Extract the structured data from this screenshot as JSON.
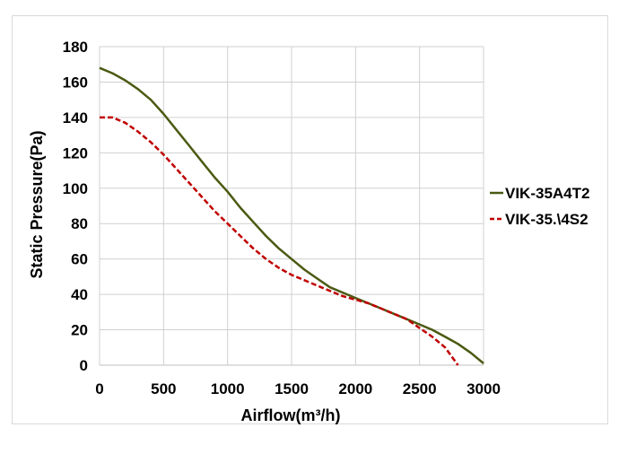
{
  "chart_data": {
    "type": "line",
    "xlabel": "Airflow(m³/h)",
    "ylabel": "Static Pressure(Pa)",
    "xlim": [
      0,
      3000
    ],
    "ylim": [
      0,
      180
    ],
    "x_ticks": [
      0,
      500,
      1000,
      1500,
      2000,
      2500,
      3000
    ],
    "y_ticks": [
      0,
      20,
      40,
      60,
      80,
      100,
      120,
      140,
      160,
      180
    ],
    "grid": {
      "horizontal": true,
      "vertical": true
    },
    "legend_position": "right",
    "series": [
      {
        "name": "VIK-35A4T2",
        "color": "#4a5a12",
        "style": "solid",
        "x": [
          0,
          100,
          200,
          300,
          400,
          500,
          600,
          700,
          800,
          900,
          1000,
          1100,
          1200,
          1300,
          1400,
          1500,
          1600,
          1700,
          1800,
          1900,
          2000,
          2100,
          2200,
          2300,
          2400,
          2500,
          2600,
          2700,
          2800,
          2900,
          3000
        ],
        "y": [
          168,
          165,
          161,
          156,
          150,
          142,
          133,
          124,
          115,
          106,
          98,
          89,
          81,
          73,
          66,
          60,
          54,
          49,
          44,
          41,
          38,
          35,
          32,
          29,
          26,
          23,
          20,
          16,
          12,
          7,
          1
        ]
      },
      {
        "name": "VIK-35.\\4S2",
        "color": "#c00000",
        "style": "dashed",
        "x": [
          0,
          100,
          200,
          300,
          400,
          500,
          600,
          700,
          800,
          900,
          1000,
          1100,
          1200,
          1300,
          1400,
          1500,
          1600,
          1700,
          1800,
          1900,
          2000,
          2100,
          2200,
          2300,
          2400,
          2500,
          2600,
          2700,
          2750,
          2800
        ],
        "y": [
          140,
          140,
          137,
          132,
          126,
          119,
          111,
          103,
          95,
          87,
          80,
          73,
          66,
          60,
          55,
          51,
          48,
          45,
          42,
          39,
          37,
          35,
          32,
          29,
          26,
          21,
          16,
          10,
          5,
          0
        ]
      }
    ]
  }
}
